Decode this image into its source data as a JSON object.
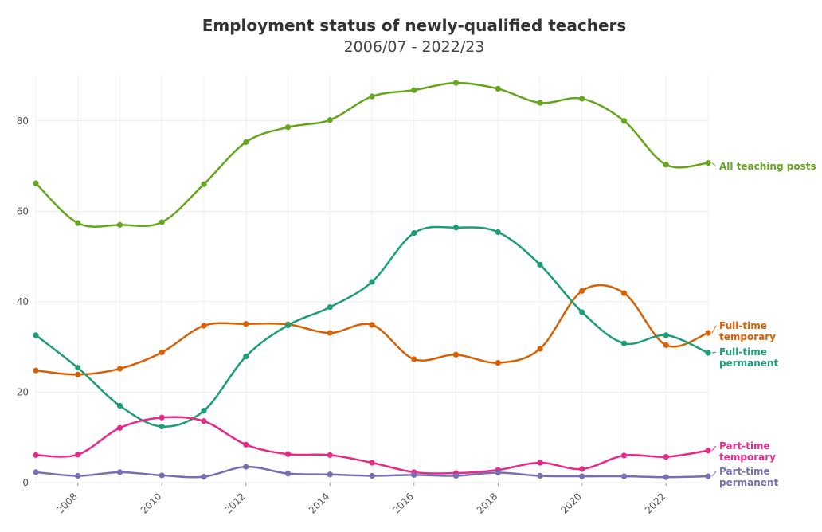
{
  "chart_data": {
    "type": "line",
    "title": "Employment status of newly-qualified teachers",
    "subtitle": "2006/07 - 2022/23",
    "xlabel": "",
    "ylabel": "",
    "xlim": [
      2007,
      2023
    ],
    "ylim": [
      0,
      90
    ],
    "x_ticks": [
      2008,
      2010,
      2012,
      2014,
      2016,
      2018,
      2020,
      2022
    ],
    "y_ticks": [
      0,
      20,
      40,
      60,
      80
    ],
    "grid": true,
    "x": [
      2007,
      2008,
      2009,
      2010,
      2011,
      2012,
      2013,
      2014,
      2015,
      2016,
      2017,
      2018,
      2019,
      2020,
      2021,
      2022,
      2023
    ],
    "series": [
      {
        "name": "All teaching posts",
        "label_lines": [
          "All teaching posts"
        ],
        "color": "#66a61e",
        "values": [
          66.2,
          57.4,
          57.0,
          57.6,
          66.0,
          75.3,
          78.6,
          80.2,
          85.4,
          86.8,
          88.4,
          87.1,
          84.0,
          84.9,
          80.0,
          70.3,
          70.7
        ]
      },
      {
        "name": "Full-time temporary",
        "label_lines": [
          "Full-time",
          "temporary"
        ],
        "color": "#d95f02",
        "values": [
          24.8,
          23.9,
          25.2,
          28.8,
          34.7,
          35.1,
          35.0,
          33.1,
          34.9,
          27.3,
          28.3,
          26.5,
          29.6,
          42.4,
          41.9,
          30.4,
          33.1
        ]
      },
      {
        "name": "Full-time permanent",
        "label_lines": [
          "Full-time",
          "permanent"
        ],
        "color": "#1b9e77",
        "values": [
          32.6,
          25.4,
          17.0,
          12.4,
          15.9,
          27.9,
          34.8,
          38.8,
          44.4,
          55.2,
          56.4,
          55.4,
          48.2,
          37.7,
          30.8,
          32.6,
          28.7
        ]
      },
      {
        "name": "Part-time temporary",
        "label_lines": [
          "Part-time",
          "temporary"
        ],
        "color": "#e7298a",
        "values": [
          6.1,
          6.2,
          12.1,
          14.4,
          13.6,
          8.4,
          6.3,
          6.1,
          4.4,
          2.3,
          2.1,
          2.8,
          4.4,
          3.0,
          6.0,
          5.7,
          7.1
        ]
      },
      {
        "name": "Part-time permanent",
        "label_lines": [
          "Part-time",
          "permanent"
        ],
        "color": "#7570b3",
        "values": [
          2.3,
          1.5,
          2.3,
          1.6,
          1.3,
          3.5,
          2.0,
          1.8,
          1.5,
          1.7,
          1.5,
          2.2,
          1.5,
          1.4,
          1.4,
          1.2,
          1.4
        ]
      }
    ]
  }
}
